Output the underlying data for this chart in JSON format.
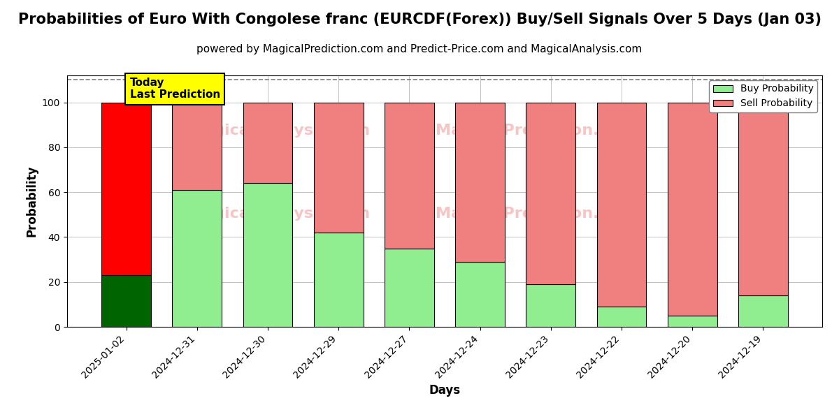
{
  "title": "Probabilities of Euro With Congolese franc (EURCDF(Forex)) Buy/Sell Signals Over 5 Days (Jan 03)",
  "subtitle": "powered by MagicalPrediction.com and Predict-Price.com and MagicalAnalysis.com",
  "xlabel": "Days",
  "ylabel": "Probability",
  "categories": [
    "2025-01-02",
    "2024-12-31",
    "2024-12-30",
    "2024-12-29",
    "2024-12-27",
    "2024-12-24",
    "2024-12-23",
    "2024-12-22",
    "2024-12-20",
    "2024-12-19"
  ],
  "buy_values": [
    23,
    61,
    64,
    42,
    35,
    29,
    19,
    9,
    5,
    14
  ],
  "sell_values": [
    77,
    39,
    36,
    58,
    65,
    71,
    81,
    91,
    95,
    86
  ],
  "buy_color_today": "#006400",
  "sell_color_today": "#ff0000",
  "buy_color": "#90EE90",
  "sell_color": "#F08080",
  "bar_edge_color": "#000000",
  "ylim": [
    0,
    112
  ],
  "yticks": [
    0,
    20,
    40,
    60,
    80,
    100
  ],
  "dashed_line_y": 110,
  "legend_buy": "Buy Probability",
  "legend_sell": "Sell Probability",
  "today_label": "Today\nLast Prediction",
  "today_label_bg": "#ffff00",
  "grid_color": "#aaaaaa",
  "title_fontsize": 15,
  "subtitle_fontsize": 11,
  "label_fontsize": 12,
  "tick_fontsize": 10,
  "figsize": [
    12,
    6
  ]
}
